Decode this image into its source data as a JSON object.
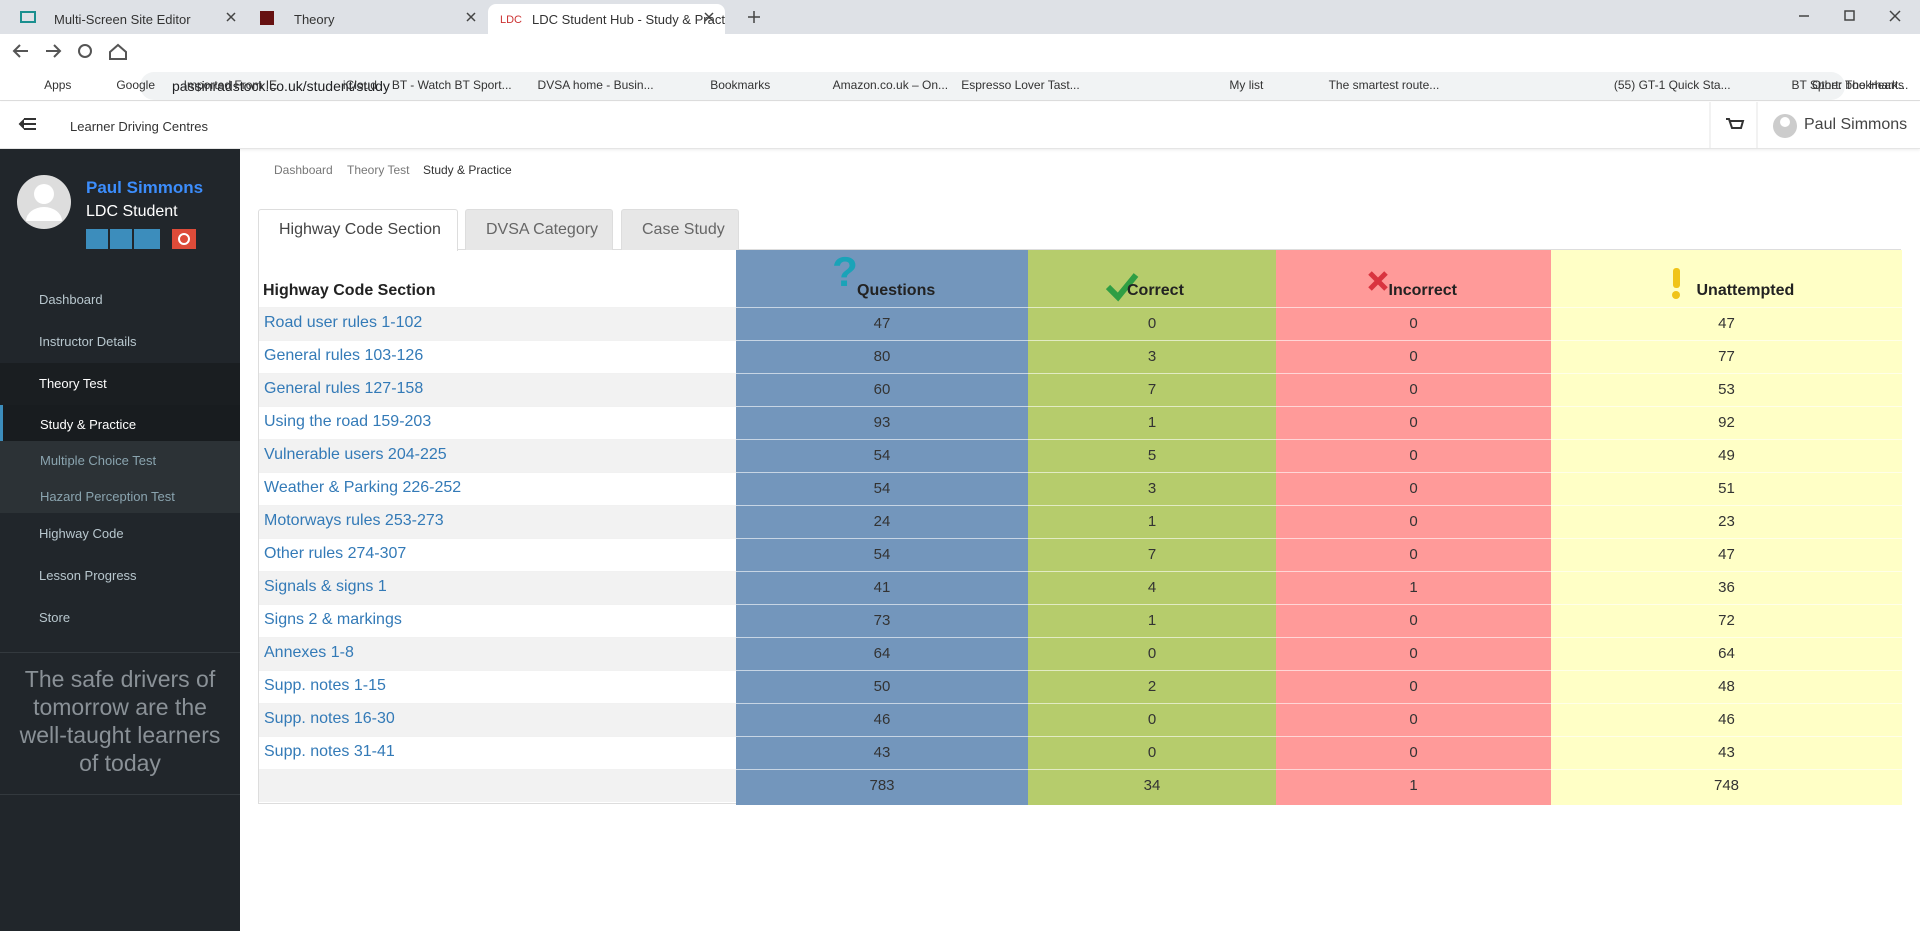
{
  "browser": {
    "tabs": [
      "Multi-Screen Site Editor",
      "Theory",
      "LDC Student Hub - Study & Practi"
    ],
    "url": "passinradstock.co.uk/student/study",
    "bookmarks": [
      "Apps",
      "Google",
      "Imported From IE",
      "iCloud",
      "BT - Watch BT Sport...",
      "DVSA home - Busin...",
      "Bookmarks",
      "Amazon.co.uk – On...",
      "Espresso Lover Tast...",
      "My list",
      "The smartest route...",
      "(55) GT-1 Quick Sta...",
      "BT Sport: The Heart..."
    ],
    "other_bookmarks": "Other bookmarks"
  },
  "header": {
    "brand": "Learner Driving Centres",
    "user": "Paul Simmons"
  },
  "sidebar": {
    "name": "Paul Simmons",
    "role": "LDC Student",
    "menu": [
      "Dashboard",
      "Instructor Details",
      "Theory Test"
    ],
    "submenu": [
      "Study & Practice",
      "Multiple Choice Test",
      "Hazard Perception Test"
    ],
    "menu_after": [
      "Highway Code",
      "Lesson Progress",
      "Store"
    ],
    "quote": "The safe drivers of tomorrow are the well-taught learners of today"
  },
  "breadcrumb": [
    "Dashboard",
    "Theory Test",
    "Study & Practice"
  ],
  "tabs": [
    "Highway Code Section",
    "DVSA Category",
    "Case Study"
  ],
  "table": {
    "columns": [
      "Highway Code Section",
      "Questions",
      "Correct",
      "Incorrect",
      "Unattempted"
    ],
    "rows": [
      [
        "Road user rules 1-102",
        47,
        0,
        0,
        47
      ],
      [
        "General rules 103-126",
        80,
        3,
        0,
        77
      ],
      [
        "General rules 127-158",
        60,
        7,
        0,
        53
      ],
      [
        "Using the road 159-203",
        93,
        1,
        0,
        92
      ],
      [
        "Vulnerable users 204-225",
        54,
        5,
        0,
        49
      ],
      [
        "Weather & Parking 226-252",
        54,
        3,
        0,
        51
      ],
      [
        "Motorways rules 253-273",
        24,
        1,
        0,
        23
      ],
      [
        "Other rules 274-307",
        54,
        7,
        0,
        47
      ],
      [
        "Signals & signs 1",
        41,
        4,
        1,
        36
      ],
      [
        "Signs 2 & markings",
        73,
        1,
        0,
        72
      ],
      [
        "Annexes 1-8",
        64,
        0,
        0,
        64
      ],
      [
        "Supp. notes 1-15",
        50,
        2,
        0,
        48
      ],
      [
        "Supp. notes 16-30",
        46,
        0,
        0,
        46
      ],
      [
        "Supp. notes 31-41",
        43,
        0,
        0,
        43
      ]
    ],
    "totals": [
      783,
      34,
      1,
      748
    ]
  }
}
